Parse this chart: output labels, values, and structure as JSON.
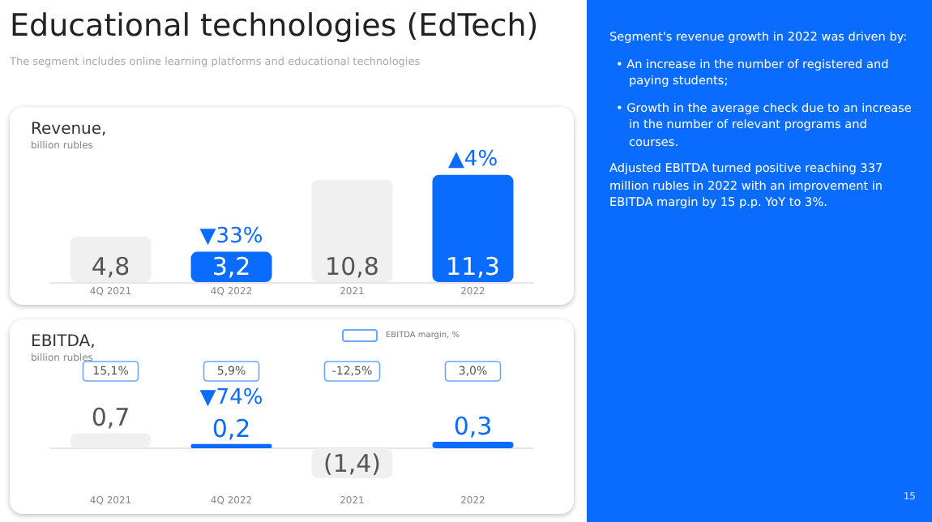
{
  "chart_data": [
    {
      "type": "other",
      "title": "Educational technologies (EdTech)",
      "subtitle": "The segment includes online learning platforms and educational technologies"
    },
    {
      "type": "bar",
      "title": "Revenue,",
      "subtitle": "billion rubles",
      "categories": [
        "4Q 2021",
        "4Q 2022",
        "2021",
        "2022"
      ],
      "values": [
        4.8,
        3.2,
        10.8,
        11.3
      ],
      "colors": [
        "#f0f0f0",
        "#0a6cff",
        "#f0f0f0",
        "#0a6cff"
      ],
      "value_labels": [
        "4,8",
        "3,2",
        "10,8",
        "11,3"
      ],
      "annotations": [
        {
          "text": "▼33%",
          "x": "4Q 2022",
          "y": 3.2
        },
        {
          "text": "▲4%",
          "x": "2022",
          "y": 11.3
        }
      ]
    },
    {
      "type": "bar",
      "title": "EBITDA,",
      "subtitle": "billion rubles",
      "legend_title": "EBITDA margin, %",
      "categories": [
        "4Q 2021",
        "4Q 2022",
        "2021",
        "2022"
      ],
      "values": [
        0.7,
        0.2,
        -1.4,
        0.3
      ],
      "colors": [
        "#f0f0f0",
        "#0a6cff",
        "#f0f0f0",
        "#0a6cff"
      ],
      "value_labels": [
        "0,7",
        "0,2",
        "(1,4)",
        "0,3"
      ],
      "annotations": [
        "15,1%",
        "5,9%",
        "-12,5%",
        "3,0%",
        {
          "text": "▼74%",
          "x": "4Q 2022",
          "y": 0.2
        }
      ]
    },
    {
      "type": "other",
      "annotations": [
        "Segment's revenue growth in 2022 was driven by:",
        "• An increase in the number of registered and paying students;",
        "• Growth in the average check due to an increase in the number of relevant programs and courses.",
        "Adjusted EBITDA turned positive reaching 337 million rubles in 2022 with an improvement in EBITDA margin by 15 p.p. YoY to 3%.",
        "15"
      ]
    }
  ]
}
